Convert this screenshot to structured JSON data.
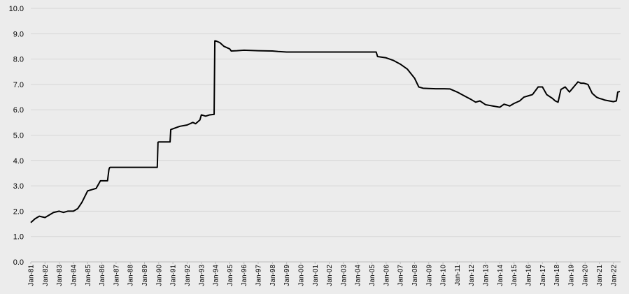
{
  "chart_data": {
    "type": "line",
    "title": "",
    "xlabel": "",
    "ylabel": "",
    "ylim": [
      0,
      10
    ],
    "grid": true,
    "legend": "none",
    "colors": {
      "background": "#ececec",
      "grid": "#d6d6d6",
      "line": "#000000"
    },
    "y_ticks": [
      "0.0",
      "1.0",
      "2.0",
      "3.0",
      "4.0",
      "5.0",
      "6.0",
      "7.0",
      "8.0",
      "9.0",
      "10.0"
    ],
    "x_ticks": [
      "Jan-81",
      "Jan-82",
      "Jan-83",
      "Jan-84",
      "Jan-85",
      "Jan-86",
      "Jan-87",
      "Jan-88",
      "Jan-89",
      "Jan-90",
      "Jan-91",
      "Jan-92",
      "Jan-93",
      "Jan-94",
      "Jan-95",
      "Jan-96",
      "Jan-97",
      "Jan-98",
      "Jan-99",
      "Jan-00",
      "Jan-01",
      "Jan-02",
      "Jan-03",
      "Jan-04",
      "Jan-05",
      "Jan-06",
      "Jan-07",
      "Jan-08",
      "Jan-09",
      "Jan-10",
      "Jan-11",
      "Jan-12",
      "Jan-13",
      "Jan-14",
      "Jan-15",
      "Jan-16",
      "Jan-17",
      "Jan-18",
      "Jan-19",
      "Jan-20",
      "Jan-21",
      "Jan-22"
    ],
    "series": [
      {
        "x": [
          1981.0,
          1981.3,
          1981.6,
          1982.0,
          1982.3,
          1982.6,
          1983.0,
          1983.3,
          1983.6,
          1984.0,
          1984.3,
          1984.6,
          1985.0,
          1985.3,
          1985.6,
          1985.9,
          1986.0,
          1986.4,
          1986.5,
          1986.55,
          1986.6,
          1988.0,
          1989.0,
          1989.9,
          1989.95,
          1990.0,
          1990.8,
          1990.85,
          1991.0,
          1991.5,
          1992.0,
          1992.4,
          1992.6,
          1992.9,
          1993.0,
          1993.3,
          1993.6,
          1993.9,
          1993.95,
          1994.0,
          1994.3,
          1994.6,
          1995.0,
          1995.1,
          1995.5,
          1996.0,
          1997.0,
          1998.0,
          1998.4,
          1999.0,
          2000.0,
          2001.0,
          2002.0,
          2003.0,
          2004.0,
          2005.0,
          2005.3,
          2005.4,
          2006.0,
          2006.5,
          2007.0,
          2007.5,
          2008.0,
          2008.3,
          2008.6,
          2009.0,
          2009.5,
          2010.0,
          2010.5,
          2011.0,
          2011.5,
          2012.0,
          2012.3,
          2012.6,
          2013.0,
          2013.5,
          2014.0,
          2014.3,
          2014.7,
          2015.0,
          2015.4,
          2015.7,
          2016.0,
          2016.3,
          2016.7,
          2017.0,
          2017.3,
          2017.7,
          2017.9,
          2018.1,
          2018.3,
          2018.6,
          2018.9,
          2019.2,
          2019.5,
          2019.7,
          2019.9,
          2020.2,
          2020.5,
          2020.8,
          2021.0,
          2021.2,
          2021.4,
          2021.7,
          2022.0,
          2022.2,
          2022.3,
          2022.45
        ],
        "values": [
          1.55,
          1.7,
          1.8,
          1.75,
          1.85,
          1.95,
          2.0,
          1.95,
          2.0,
          2.0,
          2.1,
          2.35,
          2.8,
          2.85,
          2.9,
          3.2,
          3.2,
          3.2,
          3.65,
          3.72,
          3.73,
          3.73,
          3.73,
          3.73,
          4.72,
          4.73,
          4.73,
          5.22,
          5.25,
          5.35,
          5.4,
          5.5,
          5.45,
          5.6,
          5.8,
          5.75,
          5.8,
          5.82,
          8.72,
          8.72,
          8.65,
          8.5,
          8.4,
          8.32,
          8.33,
          8.35,
          8.33,
          8.32,
          8.3,
          8.28,
          8.28,
          8.28,
          8.28,
          8.28,
          8.28,
          8.28,
          8.28,
          8.1,
          8.05,
          7.95,
          7.8,
          7.6,
          7.25,
          6.9,
          6.85,
          6.84,
          6.83,
          6.83,
          6.82,
          6.7,
          6.55,
          6.4,
          6.3,
          6.35,
          6.2,
          6.15,
          6.1,
          6.22,
          6.15,
          6.25,
          6.35,
          6.5,
          6.55,
          6.6,
          6.9,
          6.9,
          6.6,
          6.45,
          6.35,
          6.3,
          6.8,
          6.9,
          6.7,
          6.9,
          7.1,
          7.05,
          7.05,
          7.0,
          6.65,
          6.5,
          6.45,
          6.42,
          6.38,
          6.35,
          6.32,
          6.35,
          6.7,
          6.72
        ]
      }
    ]
  }
}
